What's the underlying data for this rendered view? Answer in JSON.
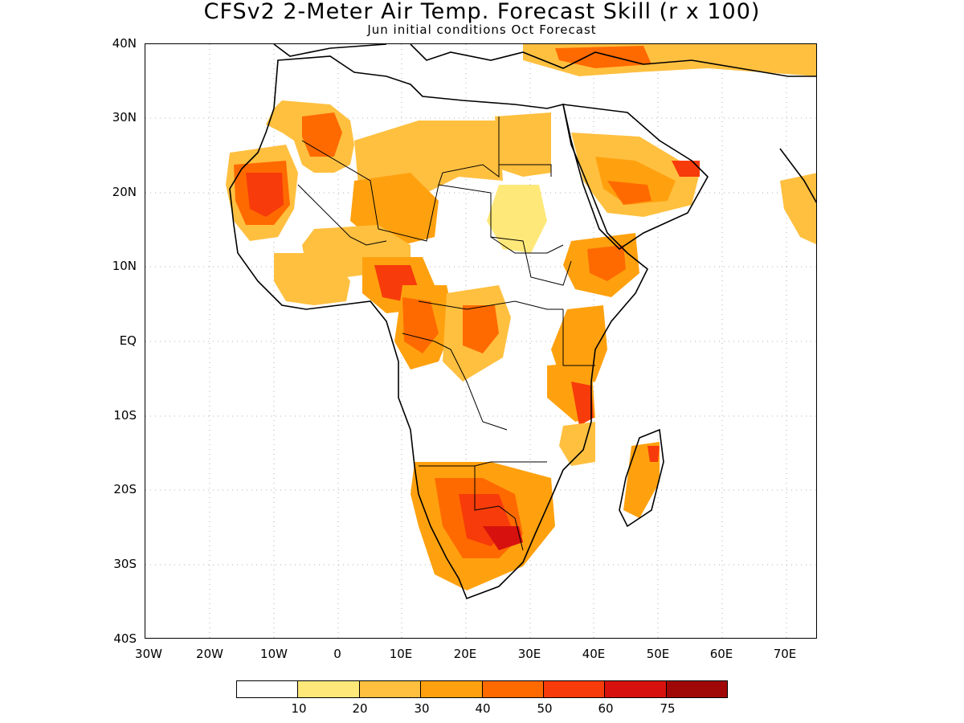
{
  "title": "CFSv2 2-Meter Air Temp. Forecast Skill (r x 100)",
  "subtitle": "Jun initial conditions  Oct Forecast",
  "lat_labels": [
    "40N",
    "30N",
    "20N",
    "10N",
    "EQ",
    "10S",
    "20S",
    "30S",
    "40S"
  ],
  "lon_labels": [
    "30W",
    "20W",
    "10W",
    "0",
    "10E",
    "20E",
    "30E",
    "40E",
    "50E",
    "60E",
    "70E"
  ],
  "colorbar": {
    "colors": [
      "#ffffff",
      "#ffe87a",
      "#ffc040",
      "#ffa10f",
      "#ff6a00",
      "#f73b0a",
      "#d7120e",
      "#a00808"
    ],
    "labels": [
      "10",
      "20",
      "30",
      "40",
      "50",
      "60",
      "75"
    ]
  },
  "map_extent": {
    "lon": [
      -30,
      75
    ],
    "lat": [
      -40,
      40
    ]
  }
}
